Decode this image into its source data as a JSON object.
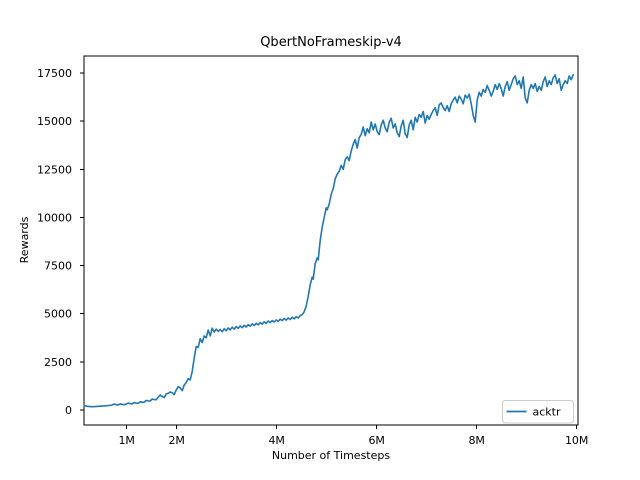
{
  "chart_data": {
    "type": "line",
    "title": "QbertNoFrameskip-v4",
    "xlabel": "Number of Timesteps",
    "ylabel": "Rewards",
    "grid": false,
    "background": "#ffffff",
    "axis_color": "#000000",
    "xlim_millions": [
      0.146,
      10.026
    ],
    "ylim": [
      -779,
      18383
    ],
    "xticks": {
      "values_millions": [
        1,
        2,
        4,
        6,
        8,
        10
      ],
      "labels": [
        "1M",
        "2M",
        "4M",
        "6M",
        "8M",
        "10M"
      ]
    },
    "yticks": {
      "values": [
        0,
        2500,
        5000,
        7500,
        10000,
        12500,
        15000,
        17500
      ],
      "labels": [
        "0",
        "2500",
        "5000",
        "7500",
        "10000",
        "12500",
        "15000",
        "17500"
      ]
    },
    "legend": {
      "location": "lower right",
      "entries": [
        {
          "label": "acktr",
          "color": "#1f77b4"
        }
      ]
    },
    "series": [
      {
        "name": "acktr",
        "color": "#1f77b4",
        "x_millions": [
          0.15,
          0.22,
          0.29,
          0.36,
          0.43,
          0.5,
          0.57,
          0.64,
          0.7,
          0.75,
          0.79,
          0.83,
          0.87,
          0.91,
          0.95,
          0.99,
          1.03,
          1.07,
          1.11,
          1.15,
          1.19,
          1.23,
          1.27,
          1.31,
          1.35,
          1.39,
          1.43,
          1.47,
          1.51,
          1.55,
          1.59,
          1.63,
          1.67,
          1.71,
          1.75,
          1.79,
          1.83,
          1.87,
          1.91,
          1.95,
          1.99,
          2.03,
          2.07,
          2.11,
          2.15,
          2.19,
          2.23,
          2.27,
          2.31,
          2.35,
          2.39,
          2.43,
          2.47,
          2.51,
          2.55,
          2.59,
          2.63,
          2.67,
          2.71,
          2.75,
          2.79,
          2.83,
          2.87,
          2.91,
          2.95,
          2.99,
          3.03,
          3.07,
          3.11,
          3.15,
          3.19,
          3.23,
          3.27,
          3.31,
          3.35,
          3.39,
          3.43,
          3.47,
          3.51,
          3.55,
          3.59,
          3.63,
          3.67,
          3.71,
          3.75,
          3.79,
          3.83,
          3.87,
          3.91,
          3.95,
          3.99,
          4.03,
          4.07,
          4.11,
          4.15,
          4.19,
          4.23,
          4.27,
          4.31,
          4.35,
          4.39,
          4.43,
          4.47,
          4.51,
          4.55,
          4.59,
          4.63,
          4.67,
          4.71,
          4.73,
          4.77,
          4.81,
          4.83,
          4.87,
          4.91,
          4.95,
          4.99,
          5.01,
          5.05,
          5.09,
          5.13,
          5.17,
          5.21,
          5.25,
          5.29,
          5.33,
          5.37,
          5.41,
          5.45,
          5.49,
          5.53,
          5.57,
          5.61,
          5.65,
          5.69,
          5.73,
          5.77,
          5.81,
          5.85,
          5.89,
          5.93,
          5.97,
          6.01,
          6.05,
          6.09,
          6.13,
          6.17,
          6.21,
          6.25,
          6.29,
          6.33,
          6.37,
          6.41,
          6.45,
          6.49,
          6.53,
          6.57,
          6.61,
          6.65,
          6.69,
          6.73,
          6.77,
          6.81,
          6.85,
          6.89,
          6.93,
          6.97,
          7.01,
          7.05,
          7.09,
          7.13,
          7.17,
          7.21,
          7.25,
          7.29,
          7.33,
          7.37,
          7.41,
          7.45,
          7.49,
          7.53,
          7.57,
          7.61,
          7.65,
          7.69,
          7.73,
          7.77,
          7.81,
          7.85,
          7.89,
          7.93,
          7.97,
          8.01,
          8.05,
          8.09,
          8.13,
          8.17,
          8.21,
          8.25,
          8.29,
          8.33,
          8.37,
          8.41,
          8.45,
          8.49,
          8.53,
          8.57,
          8.61,
          8.65,
          8.69,
          8.73,
          8.77,
          8.81,
          8.85,
          8.89,
          8.93,
          8.97,
          9.01,
          9.05,
          9.09,
          9.13,
          9.17,
          9.21,
          9.25,
          9.29,
          9.33,
          9.37,
          9.41,
          9.45,
          9.49,
          9.53,
          9.57,
          9.61,
          9.65,
          9.69,
          9.73,
          9.77,
          9.81,
          9.85,
          9.89,
          9.93
        ],
        "y": [
          230,
          190,
          170,
          175,
          190,
          205,
          220,
          235,
          250,
          310,
          270,
          260,
          320,
          290,
          275,
          300,
          360,
          330,
          315,
          390,
          355,
          350,
          430,
          400,
          410,
          500,
          470,
          465,
          570,
          540,
          535,
          660,
          780,
          700,
          645,
          830,
          865,
          935,
          900,
          795,
          1040,
          1210,
          1150,
          1000,
          1300,
          1425,
          1625,
          1560,
          2000,
          2700,
          3300,
          3250,
          3700,
          3500,
          3850,
          3750,
          4150,
          3850,
          4250,
          4050,
          4200,
          4080,
          4180,
          4060,
          4220,
          4120,
          4260,
          4160,
          4300,
          4200,
          4330,
          4240,
          4360,
          4280,
          4400,
          4310,
          4430,
          4350,
          4470,
          4390,
          4500,
          4420,
          4540,
          4460,
          4580,
          4500,
          4620,
          4540,
          4650,
          4570,
          4680,
          4600,
          4720,
          4640,
          4750,
          4670,
          4780,
          4700,
          4820,
          4730,
          4850,
          4780,
          4900,
          4950,
          5100,
          5400,
          5900,
          6500,
          6900,
          6800,
          7600,
          7900,
          7800,
          8800,
          9500,
          10000,
          10500,
          10400,
          10700,
          11200,
          11500,
          12000,
          12250,
          12400,
          12700,
          12500,
          13000,
          13150,
          12950,
          13450,
          13800,
          14050,
          13600,
          14150,
          14300,
          14700,
          14250,
          14600,
          14400,
          14950,
          14550,
          14850,
          14450,
          14300,
          14800,
          15050,
          14650,
          14450,
          14950,
          15150,
          14650,
          14850,
          14400,
          14200,
          14750,
          15050,
          14350,
          14150,
          14800,
          15050,
          14550,
          15200,
          14950,
          15350,
          15200,
          15500,
          14900,
          15300,
          15100,
          15350,
          15550,
          15700,
          15300,
          15850,
          15950,
          15700,
          15550,
          15800,
          15500,
          15900,
          16100,
          16250,
          15950,
          16300,
          16150,
          15900,
          16350,
          16200,
          16400,
          15900,
          15300,
          14950,
          16100,
          16500,
          16300,
          16650,
          16500,
          16850,
          16600,
          16300,
          16550,
          16900,
          16650,
          16950,
          16700,
          16300,
          16800,
          17050,
          16600,
          16900,
          17200,
          17350,
          16900,
          17100,
          16700,
          17300,
          16200,
          15950,
          16600,
          16900,
          16700,
          16950,
          16550,
          16800,
          16600,
          17050,
          17300,
          16800,
          17100,
          16900,
          17250,
          17400,
          16950,
          17200,
          16600,
          16900,
          17100,
          16950,
          17350,
          17150,
          17400
        ]
      }
    ]
  }
}
